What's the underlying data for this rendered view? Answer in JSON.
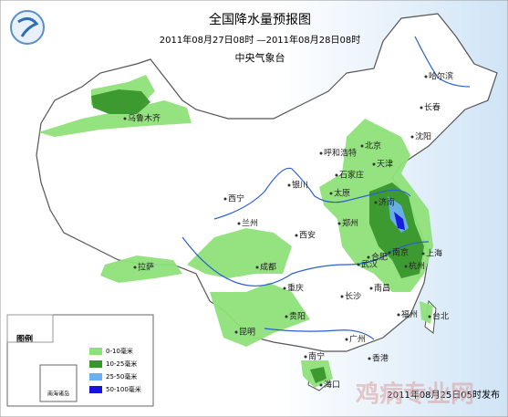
{
  "header": {
    "title": "全国降水量预报图",
    "subtitle": "2011年08月27日08时 —2011年08月28日08时",
    "agency": "中央气象台"
  },
  "legend": {
    "title": "图例",
    "items": [
      {
        "label": "0-10毫米",
        "color": "#8fe07a"
      },
      {
        "label": "10-25毫米",
        "color": "#38962c"
      },
      {
        "label": "25-50毫米",
        "color": "#6ab0f0"
      },
      {
        "label": "50-100毫米",
        "color": "#1414dc"
      }
    ]
  },
  "inset_label": "南海诸岛",
  "footer": "2011年08月25日05时发布",
  "watermark": "鸡病专业网",
  "cities": [
    "哈尔滨",
    "长春",
    "沈阳",
    "乌鲁木齐",
    "呼和浩特",
    "北京",
    "天津",
    "石家庄",
    "太原",
    "银川",
    "济南",
    "西宁",
    "兰州",
    "西安",
    "郑州",
    "合肥",
    "南京",
    "上海",
    "杭州",
    "武汉",
    "拉萨",
    "成都",
    "重庆",
    "长沙",
    "南昌",
    "福州",
    "贵阳",
    "昆明",
    "南宁",
    "广州",
    "台北",
    "香港",
    "海口"
  ]
}
